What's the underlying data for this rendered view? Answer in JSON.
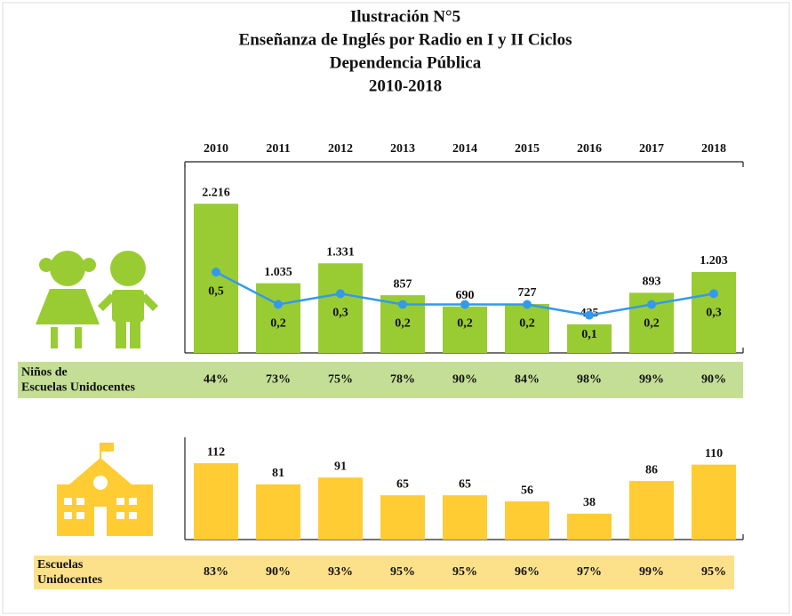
{
  "title": [
    "Ilustración N°5",
    "Enseñanza de Inglés por Radio en I y II Ciclos",
    "Dependencia Pública",
    "2010-2018"
  ],
  "chart_data": [
    {
      "type": "bar_line",
      "categories": [
        "2010",
        "2011",
        "2012",
        "2013",
        "2014",
        "2015",
        "2016",
        "2017",
        "2018"
      ],
      "values": [
        2216,
        1035,
        1331,
        857,
        690,
        727,
        425,
        893,
        1203
      ],
      "value_labels": [
        "2.216",
        "1.035",
        "1.331",
        "857",
        "690",
        "727",
        "425",
        "893",
        "1.203"
      ],
      "color": "#99cc33",
      "ylim": [
        0,
        2800
      ],
      "line_values": [
        0.5,
        0.2,
        0.3,
        0.2,
        0.2,
        0.2,
        0.1,
        0.2,
        0.3
      ],
      "line_value_labels": [
        "0,5",
        "0,2",
        "0,3",
        "0,2",
        "0,2",
        "0,2",
        "0,1",
        "0,2",
        "0,3"
      ],
      "line_color": "#3399ee",
      "y2lim": [
        -0.25,
        1.5
      ],
      "row_label": "Niños de Escuelas Unidocentes",
      "row_values": [
        44,
        73,
        75,
        78,
        90,
        84,
        98,
        99,
        90
      ],
      "row_value_labels": [
        "44%",
        "73%",
        "75%",
        "78%",
        "90%",
        "84%",
        "98%",
        "99%",
        "90%"
      ],
      "row_color": "#c4df95"
    },
    {
      "type": "bar",
      "values": [
        112,
        81,
        91,
        65,
        65,
        56,
        38,
        86,
        110
      ],
      "color": "#ffcc33",
      "ylim": [
        0,
        150
      ],
      "row_label": "Escuelas Unidocentes",
      "row_values": [
        83,
        90,
        93,
        95,
        95,
        96,
        97,
        99,
        95
      ],
      "row_value_labels": [
        "83%",
        "90%",
        "93%",
        "95%",
        "95%",
        "96%",
        "97%",
        "99%",
        "95%"
      ],
      "row_color": "#fde08a"
    }
  ]
}
